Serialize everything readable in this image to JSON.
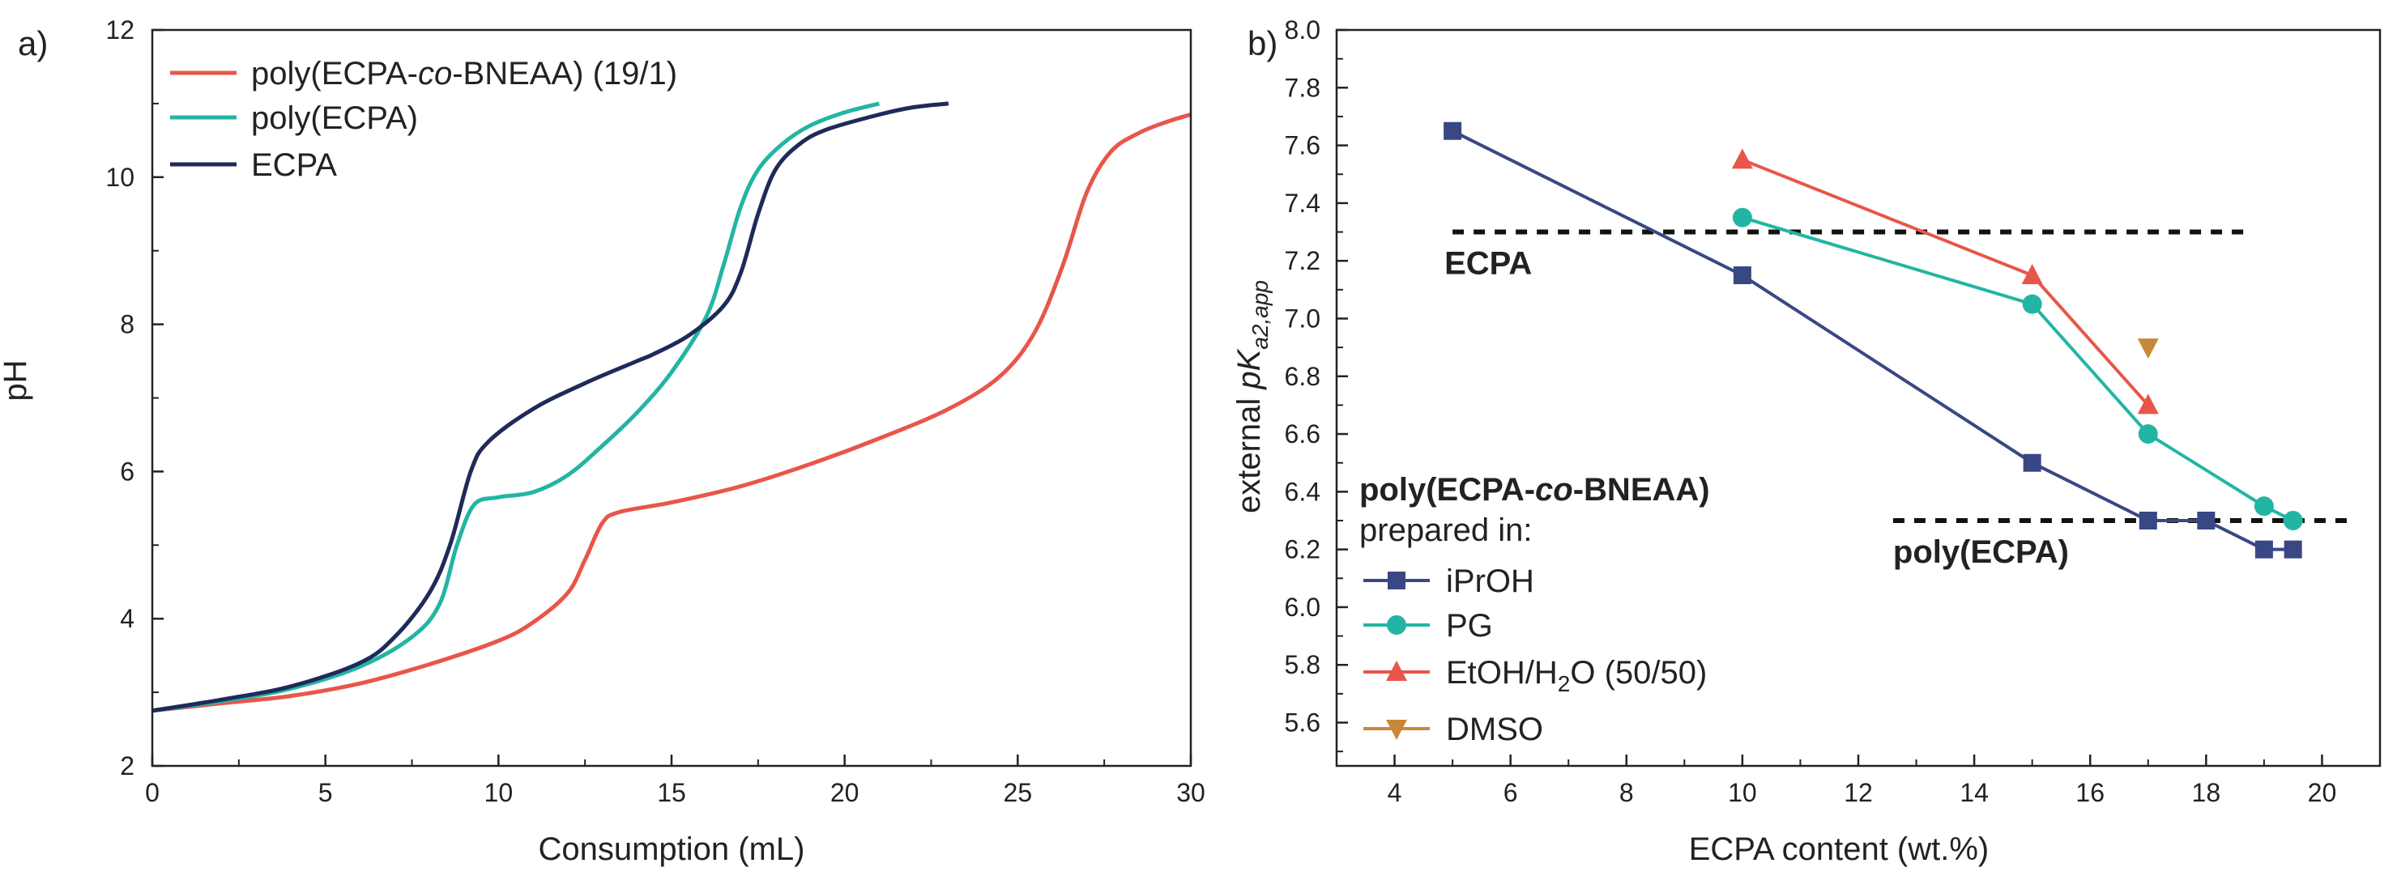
{
  "chart_data": [
    {
      "panel": "a)",
      "type": "line",
      "xlabel": "Consumption (mL)",
      "ylabel": "pH",
      "xlim": [
        0,
        30
      ],
      "ylim": [
        2,
        12
      ],
      "xticks": [
        "0",
        "5",
        "10",
        "15",
        "20",
        "25",
        "30"
      ],
      "yticks": [
        "2",
        "4",
        "6",
        "8",
        "10",
        "12"
      ],
      "legend": "top-left",
      "series": [
        {
          "name_prefix": "poly(ECPA-",
          "name_italic": "co",
          "name_suffix": "-BNEAA) (19/1)",
          "color": "#e8564a",
          "points": [
            [
              0,
              2.75
            ],
            [
              2,
              2.85
            ],
            [
              4,
              2.95
            ],
            [
              6,
              3.12
            ],
            [
              8,
              3.38
            ],
            [
              10,
              3.7
            ],
            [
              11,
              3.95
            ],
            [
              12,
              4.35
            ],
            [
              12.5,
              4.8
            ],
            [
              13,
              5.3
            ],
            [
              13.5,
              5.45
            ],
            [
              15,
              5.58
            ],
            [
              17,
              5.8
            ],
            [
              19,
              6.1
            ],
            [
              21,
              6.45
            ],
            [
              23,
              6.85
            ],
            [
              24.5,
              7.3
            ],
            [
              25.5,
              7.9
            ],
            [
              26.3,
              8.8
            ],
            [
              27,
              9.8
            ],
            [
              27.7,
              10.35
            ],
            [
              28.5,
              10.6
            ],
            [
              29.3,
              10.75
            ],
            [
              30,
              10.85
            ]
          ]
        },
        {
          "name": "poly(ECPA)",
          "color": "#23b5a3",
          "points": [
            [
              0,
              2.75
            ],
            [
              2,
              2.88
            ],
            [
              4,
              3.05
            ],
            [
              6,
              3.35
            ],
            [
              7.5,
              3.75
            ],
            [
              8.3,
              4.2
            ],
            [
              8.8,
              5.0
            ],
            [
              9.3,
              5.55
            ],
            [
              10,
              5.65
            ],
            [
              11,
              5.72
            ],
            [
              12,
              5.95
            ],
            [
              13,
              6.35
            ],
            [
              14,
              6.8
            ],
            [
              15,
              7.35
            ],
            [
              16,
              8.1
            ],
            [
              16.5,
              8.8
            ],
            [
              17,
              9.6
            ],
            [
              17.5,
              10.1
            ],
            [
              18.2,
              10.45
            ],
            [
              19,
              10.7
            ],
            [
              20,
              10.88
            ],
            [
              21,
              11.0
            ]
          ]
        },
        {
          "name": "ECPA",
          "color": "#1e2a5a",
          "points": [
            [
              0,
              2.75
            ],
            [
              2,
              2.9
            ],
            [
              4,
              3.08
            ],
            [
              6,
              3.4
            ],
            [
              7,
              3.75
            ],
            [
              8,
              4.35
            ],
            [
              8.6,
              5.0
            ],
            [
              9.2,
              6.0
            ],
            [
              9.7,
              6.4
            ],
            [
              11,
              6.85
            ],
            [
              12.5,
              7.2
            ],
            [
              14,
              7.5
            ],
            [
              14.5,
              7.6
            ],
            [
              15.5,
              7.85
            ],
            [
              16.5,
              8.25
            ],
            [
              17,
              8.7
            ],
            [
              17.5,
              9.5
            ],
            [
              18,
              10.1
            ],
            [
              18.7,
              10.45
            ],
            [
              19.5,
              10.65
            ],
            [
              21,
              10.85
            ],
            [
              22,
              10.95
            ],
            [
              23,
              11.0
            ]
          ]
        }
      ]
    },
    {
      "panel": "b)",
      "type": "line",
      "xlabel": "ECPA content (wt.%)",
      "ylabel_prefix": "external ",
      "ylabel_italic": "pK",
      "ylabel_sub": "a2,app",
      "xlim": [
        3,
        21
      ],
      "ylim": [
        5.45,
        8.0
      ],
      "xticks": [
        "4",
        "6",
        "8",
        "10",
        "12",
        "14",
        "16",
        "18",
        "20"
      ],
      "yticks": [
        "5.6",
        "5.8",
        "6.0",
        "6.2",
        "6.4",
        "6.6",
        "6.8",
        "7.0",
        "7.2",
        "7.4",
        "7.6",
        "7.8",
        "8.0"
      ],
      "legend_title_prefix": "poly(ECPA-",
      "legend_title_italic": "co",
      "legend_title_suffix": "-BNEAA)",
      "legend_subtitle": "prepared in:",
      "legend": "bottom-left",
      "reference_lines": [
        {
          "label": "ECPA",
          "y": 7.3,
          "x_range": [
            5,
            18.7
          ]
        },
        {
          "label": "poly(ECPA)",
          "y": 6.3,
          "x_range": [
            12.6,
            20.5
          ]
        }
      ],
      "series": [
        {
          "name": "iPrOH",
          "marker": "square",
          "color": "#3a4785",
          "x": [
            5,
            10,
            15,
            17,
            18,
            19,
            19.5
          ],
          "y": [
            7.65,
            7.15,
            6.5,
            6.3,
            6.3,
            6.2,
            6.2
          ]
        },
        {
          "name": "PG",
          "marker": "circle",
          "color": "#23b5a3",
          "x": [
            10,
            15,
            17,
            19,
            19.5
          ],
          "y": [
            7.35,
            7.05,
            6.6,
            6.35,
            6.3
          ]
        },
        {
          "name_prefix": "EtOH/H",
          "name_sub": "2",
          "name_suffix": "O (50/50)",
          "marker": "triangle-up",
          "color": "#e8564a",
          "x": [
            10,
            15,
            17
          ],
          "y": [
            7.55,
            7.15,
            6.7
          ]
        },
        {
          "name": "DMSO",
          "marker": "triangle-down",
          "color": "#c8883a",
          "x": [
            17
          ],
          "y": [
            6.9
          ]
        }
      ]
    }
  ]
}
